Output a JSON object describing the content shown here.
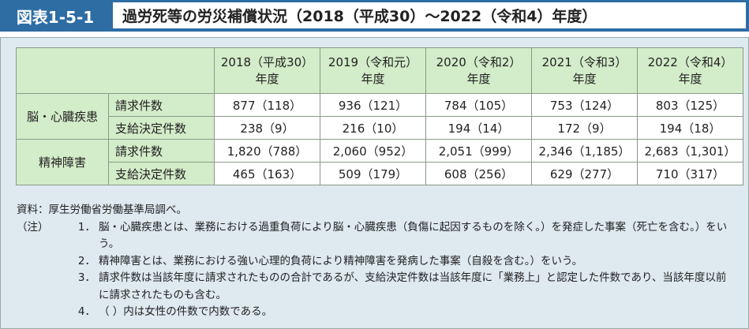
{
  "header": {
    "label": "図表1-5-1",
    "title": "過労死等の労災補償状況（2018（平成30）～2022（令和4）年度）"
  },
  "table": {
    "columns": [
      [
        "2018（平成30）",
        "年度"
      ],
      [
        "2019（令和元）",
        "年度"
      ],
      [
        "2020（令和2）",
        "年度"
      ],
      [
        "2021（令和3）",
        "年度"
      ],
      [
        "2022（令和4）",
        "年度"
      ]
    ],
    "groups": [
      {
        "label": "脳・心臓疾患",
        "rows": [
          {
            "label": "請求件数",
            "values": [
              "877（118）",
              "936（121）",
              "784（105）",
              "753（124）",
              "803（125）"
            ]
          },
          {
            "label": "支給決定件数",
            "values": [
              "238（9）",
              "216（10）",
              "194（14）",
              "172（9）",
              "194（18）"
            ]
          }
        ]
      },
      {
        "label": "精神障害",
        "rows": [
          {
            "label": "請求件数",
            "values": [
              "1,820（788）",
              "2,060（952）",
              "2,051（999）",
              "2,346（1,185）",
              "2,683（1,301）"
            ]
          },
          {
            "label": "支給決定件数",
            "values": [
              "465（163）",
              "509（179）",
              "608（256）",
              "629（277）",
              "710（317）"
            ]
          }
        ]
      }
    ]
  },
  "notes": {
    "source": "資料：厚生労働省労働基準局調べ。",
    "note_label": "（注）",
    "items": [
      {
        "num": "1．",
        "text": "脳・心臓疾患とは、業務における過重負荷により脳・心臓疾患（負傷に起因するものを除く。）を発症した事案（死亡を含む。）をいう。"
      },
      {
        "num": "2．",
        "text": "精神障害とは、業務における強い心理的負荷により精神障害を発病した事案（自殺を含む。）をいう。"
      },
      {
        "num": "3．",
        "text": "請求件数は当該年度に請求されたものの合計であるが、支給決定件数は当該年度に「業務上」と認定した件数であり、当該年度以前に請求されたものも含む。"
      },
      {
        "num": "4．",
        "text": "（ ）内は女性の件数で内数である。"
      }
    ]
  }
}
